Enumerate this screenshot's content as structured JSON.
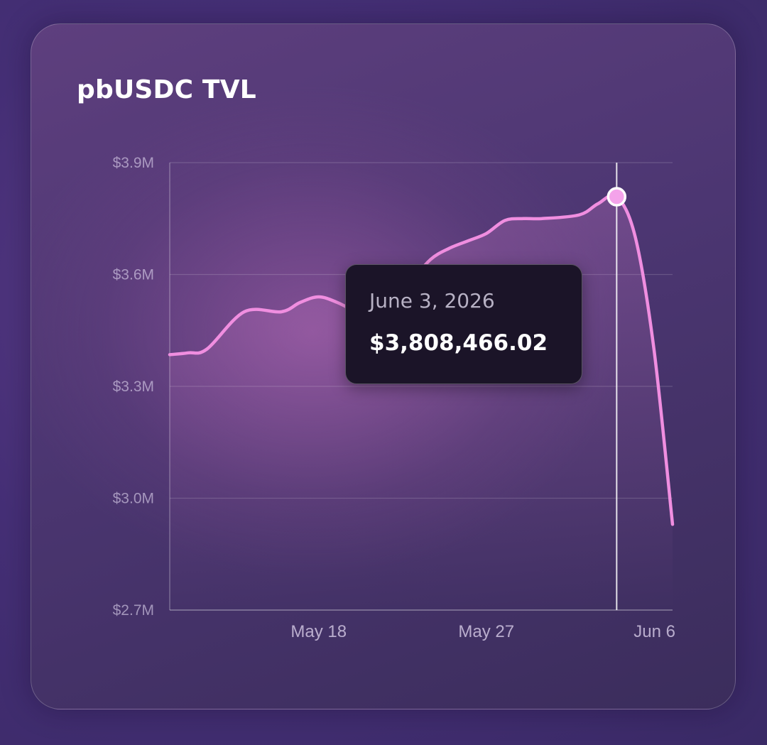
{
  "card": {
    "title": "pbUSDC TVL"
  },
  "tooltip": {
    "date": "June 3, 2026",
    "value": "$3,808,466.02"
  },
  "colors": {
    "line": "#f08ee0",
    "point_fill": "#f4a3ea",
    "crosshair": "#ffffff",
    "tooltip_bg": "#1b1428"
  },
  "chart_data": {
    "type": "line",
    "title": "pbUSDC TVL",
    "xlabel": "",
    "ylabel": "",
    "ylim": [
      2700000,
      3900000
    ],
    "xlim": [
      "2026-05-10",
      "2026-06-06"
    ],
    "y_ticks": [
      {
        "value": 3900000,
        "label": "$3.9M"
      },
      {
        "value": 3600000,
        "label": "$3.6M"
      },
      {
        "value": 3300000,
        "label": "$3.3M"
      },
      {
        "value": 3000000,
        "label": "$3.0M"
      },
      {
        "value": 2700000,
        "label": "$2.7M"
      }
    ],
    "x_ticks": [
      {
        "date": "2026-05-18",
        "label": "May 18"
      },
      {
        "date": "2026-05-27",
        "label": "May 27"
      },
      {
        "date": "2026-06-06",
        "label": "Jun 6"
      }
    ],
    "grid": true,
    "series": [
      {
        "points": [
          [
            "2026-05-10",
            3385000
          ],
          [
            "2026-05-11",
            3390000
          ],
          [
            "2026-05-12",
            3400000
          ],
          [
            "2026-05-14",
            3500000
          ],
          [
            "2026-05-16",
            3500000
          ],
          [
            "2026-05-17",
            3525000
          ],
          [
            "2026-05-18",
            3540000
          ],
          [
            "2026-05-19",
            3525000
          ],
          [
            "2026-05-20",
            3500000
          ],
          [
            "2026-05-21",
            3480000
          ],
          [
            "2026-05-22",
            3500000
          ],
          [
            "2026-05-23",
            3580000
          ],
          [
            "2026-05-24",
            3640000
          ],
          [
            "2026-05-25",
            3670000
          ],
          [
            "2026-05-26",
            3690000
          ],
          [
            "2026-05-27",
            3710000
          ],
          [
            "2026-05-28",
            3745000
          ],
          [
            "2026-05-29",
            3750000
          ],
          [
            "2026-05-30",
            3750000
          ],
          [
            "2026-06-01",
            3760000
          ],
          [
            "2026-06-02",
            3790000
          ],
          [
            "2026-06-03",
            3808466.02
          ],
          [
            "2026-06-04",
            3700000
          ],
          [
            "2026-06-05",
            3400000
          ],
          [
            "2026-06-06",
            2930000
          ]
        ]
      }
    ],
    "highlight": {
      "date": "2026-06-03",
      "value": 3808466.02
    }
  }
}
